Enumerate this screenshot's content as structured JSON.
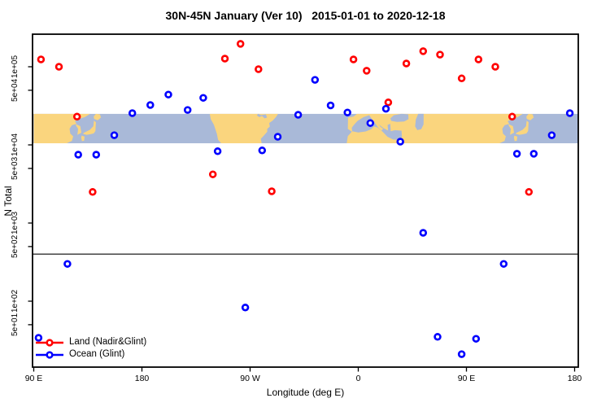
{
  "title": "30N-45N January (Ver 10)   2015-01-01 to 2020-12-18",
  "axes": {
    "x": {
      "label": "Longitude (deg E)",
      "ticks": [
        {
          "lon": 90,
          "label": "90 E"
        },
        {
          "lon": 180,
          "label": "180"
        },
        {
          "lon": 270,
          "label": "90 W"
        },
        {
          "lon": 360,
          "label": "0"
        },
        {
          "lon": 450,
          "label": "90 E"
        },
        {
          "lon": 540,
          "label": "180"
        }
      ]
    },
    "y": {
      "label": "N Total",
      "ticks": [
        {
          "value": 100000,
          "label": "1e+05"
        },
        {
          "value": 50000,
          "label": "5e+04"
        },
        {
          "value": 10000,
          "label": "1e+04"
        },
        {
          "value": 5000,
          "label": "5e+03"
        },
        {
          "value": 1000,
          "label": "1e+03"
        },
        {
          "value": 500,
          "label": "5e+02"
        },
        {
          "value": 100,
          "label": "1e+02"
        },
        {
          "value": 50,
          "label": "5e+01"
        }
      ]
    }
  },
  "colors": {
    "land_series": "#FF0000",
    "ocean_series": "#0000FF",
    "map_land": "#FAD57E",
    "map_ocean": "#A9B9D8",
    "ref_line": "#333333",
    "axis": "#000000",
    "point_fill": "#FFFFFF"
  },
  "chart_data": {
    "type": "scatter",
    "title": "30N-45N January (Ver 10)   2015-01-01 to 2020-12-18",
    "xlabel": "Longitude (deg E)",
    "ylabel": "N Total",
    "x_axis_note": "longitude axis continues past 360 (90E..540 = 90E wrapping to 180)",
    "xlim": [
      89,
      543
    ],
    "ylog_lim": [
      14,
      261000
    ],
    "ref_line_n": 400,
    "map_band": {
      "lat_range": "30N-45N",
      "n_top": 25000,
      "n_bottom": 10500
    },
    "legend_position": "bottom-left",
    "series": [
      {
        "name": "Land (Nadir&Glint)",
        "color": "#FF0000",
        "points": [
          {
            "lon": 96,
            "n": 124000
          },
          {
            "lon": 111,
            "n": 100000
          },
          {
            "lon": 126,
            "n": 23000
          },
          {
            "lon": 139,
            "n": 2500
          },
          {
            "lon": 239,
            "n": 4200
          },
          {
            "lon": 249,
            "n": 127000
          },
          {
            "lon": 262,
            "n": 196000
          },
          {
            "lon": 277,
            "n": 93000
          },
          {
            "lon": 288,
            "n": 2550
          },
          {
            "lon": 356,
            "n": 124000
          },
          {
            "lon": 367,
            "n": 89000
          },
          {
            "lon": 385,
            "n": 35000
          },
          {
            "lon": 400,
            "n": 110000
          },
          {
            "lon": 414,
            "n": 158000
          },
          {
            "lon": 428,
            "n": 143000
          },
          {
            "lon": 446,
            "n": 71000
          },
          {
            "lon": 460,
            "n": 124000
          },
          {
            "lon": 474,
            "n": 100000
          },
          {
            "lon": 488,
            "n": 23000
          },
          {
            "lon": 502,
            "n": 2500
          }
        ]
      },
      {
        "name": "Ocean (Glint)",
        "color": "#0000FF",
        "points": [
          {
            "lon": 94,
            "n": 34
          },
          {
            "lon": 118,
            "n": 300
          },
          {
            "lon": 127,
            "n": 7500
          },
          {
            "lon": 142,
            "n": 7500
          },
          {
            "lon": 157,
            "n": 13300
          },
          {
            "lon": 172,
            "n": 25500
          },
          {
            "lon": 187,
            "n": 32400
          },
          {
            "lon": 202,
            "n": 44000
          },
          {
            "lon": 218,
            "n": 28000
          },
          {
            "lon": 231,
            "n": 40000
          },
          {
            "lon": 243,
            "n": 8300
          },
          {
            "lon": 266,
            "n": 83
          },
          {
            "lon": 280,
            "n": 8500
          },
          {
            "lon": 293,
            "n": 12700
          },
          {
            "lon": 310,
            "n": 24300
          },
          {
            "lon": 324,
            "n": 68000
          },
          {
            "lon": 337,
            "n": 32000
          },
          {
            "lon": 351,
            "n": 26000
          },
          {
            "lon": 370,
            "n": 19000
          },
          {
            "lon": 383,
            "n": 29000
          },
          {
            "lon": 395,
            "n": 11000
          },
          {
            "lon": 414,
            "n": 750
          },
          {
            "lon": 426,
            "n": 35
          },
          {
            "lon": 446,
            "n": 21
          },
          {
            "lon": 458,
            "n": 33
          },
          {
            "lon": 481,
            "n": 300
          },
          {
            "lon": 492,
            "n": 7700
          },
          {
            "lon": 506,
            "n": 7700
          },
          {
            "lon": 521,
            "n": 13300
          },
          {
            "lon": 536,
            "n": 25500
          }
        ]
      }
    ]
  }
}
